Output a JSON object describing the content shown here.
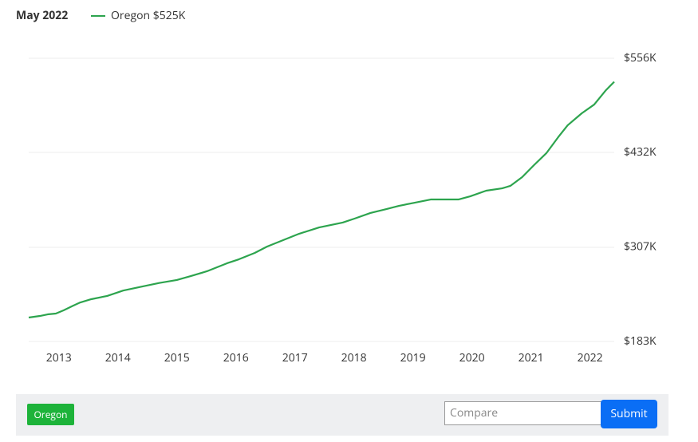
{
  "chart_data": {
    "type": "line",
    "date_label": "May 2022",
    "x": [
      2012.49,
      2012.68,
      2012.81,
      2012.95,
      2013.08,
      2013.24,
      2013.35,
      2013.55,
      2013.82,
      2014.09,
      2014.36,
      2014.7,
      2015.0,
      2015.24,
      2015.51,
      2015.85,
      2016.05,
      2016.32,
      2016.53,
      2016.8,
      2017.07,
      2017.41,
      2017.81,
      2018.01,
      2018.28,
      2018.55,
      2018.76,
      2019.03,
      2019.3,
      2019.77,
      2019.97,
      2020.24,
      2020.51,
      2020.65,
      2020.85,
      2021.05,
      2021.26,
      2021.46,
      2021.62,
      2021.86,
      2022.07,
      2022.27,
      2022.41
    ],
    "series": [
      {
        "name": "Oregon",
        "legend_label": "Oregon $525K",
        "color": "#2da44e",
        "values": [
          214.5,
          216.6,
          218.7,
          219.8,
          224,
          230,
          234,
          238.7,
          243,
          250,
          254.5,
          260,
          264,
          269.2,
          275.5,
          286,
          291.2,
          299.6,
          308,
          316.4,
          324.8,
          333.2,
          339.6,
          344.8,
          352.2,
          357.4,
          361.6,
          365.8,
          370,
          370,
          374.2,
          381.6,
          384.7,
          387.9,
          399.4,
          415.2,
          431,
          452,
          467.7,
          483.5,
          495,
          514,
          525
        ]
      }
    ],
    "xlim": [
      2012.49,
      2022.41
    ],
    "xticks": [
      2013,
      2014,
      2015,
      2016,
      2017,
      2018,
      2019,
      2020,
      2021,
      2022
    ],
    "ylim": [
      183,
      556
    ],
    "yticks": [
      {
        "value": 183,
        "label": "$183K"
      },
      {
        "value": 307,
        "label": "$307K"
      },
      {
        "value": 432,
        "label": "$432K"
      },
      {
        "value": 556,
        "label": "$556K"
      }
    ],
    "grid": true
  },
  "controls": {
    "chip": "Oregon",
    "input_placeholder": "Compare",
    "button": "Submit"
  }
}
